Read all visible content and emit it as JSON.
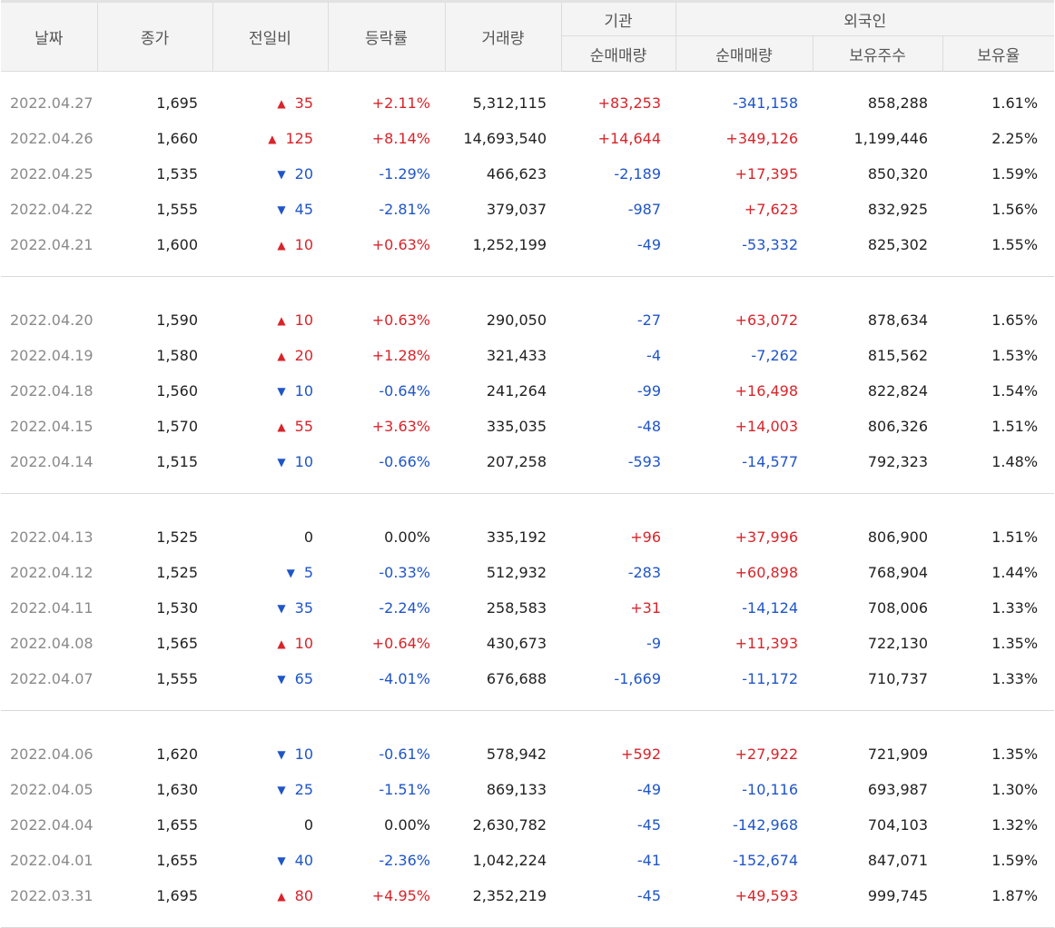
{
  "headers": {
    "date": "날짜",
    "close": "종가",
    "change": "전일비",
    "rate": "등락률",
    "volume": "거래량",
    "institution": "기관",
    "foreign": "외국인",
    "inst_net": "순매매량",
    "foreign_net": "순매매량",
    "foreign_hold": "보유주수",
    "foreign_ratio": "보유율"
  },
  "colors": {
    "up": "#d8242a",
    "down": "#1f55c8",
    "date": "#8a8a8a",
    "header_bg": "#f4f4f4"
  },
  "groups": [
    [
      {
        "date": "2022.04.27",
        "close": "1,695",
        "dir": "up",
        "change": "35",
        "rate": "+2.11%",
        "volume": "5,312,115",
        "inst": "+83,253",
        "fnet": "-341,158",
        "fhold": "858,288",
        "fratio": "1.61%"
      },
      {
        "date": "2022.04.26",
        "close": "1,660",
        "dir": "up",
        "change": "125",
        "rate": "+8.14%",
        "volume": "14,693,540",
        "inst": "+14,644",
        "fnet": "+349,126",
        "fhold": "1,199,446",
        "fratio": "2.25%"
      },
      {
        "date": "2022.04.25",
        "close": "1,535",
        "dir": "down",
        "change": "20",
        "rate": "-1.29%",
        "volume": "466,623",
        "inst": "-2,189",
        "fnet": "+17,395",
        "fhold": "850,320",
        "fratio": "1.59%"
      },
      {
        "date": "2022.04.22",
        "close": "1,555",
        "dir": "down",
        "change": "45",
        "rate": "-2.81%",
        "volume": "379,037",
        "inst": "-987",
        "fnet": "+7,623",
        "fhold": "832,925",
        "fratio": "1.56%"
      },
      {
        "date": "2022.04.21",
        "close": "1,600",
        "dir": "up",
        "change": "10",
        "rate": "+0.63%",
        "volume": "1,252,199",
        "inst": "-49",
        "fnet": "-53,332",
        "fhold": "825,302",
        "fratio": "1.55%"
      }
    ],
    [
      {
        "date": "2022.04.20",
        "close": "1,590",
        "dir": "up",
        "change": "10",
        "rate": "+0.63%",
        "volume": "290,050",
        "inst": "-27",
        "fnet": "+63,072",
        "fhold": "878,634",
        "fratio": "1.65%"
      },
      {
        "date": "2022.04.19",
        "close": "1,580",
        "dir": "up",
        "change": "20",
        "rate": "+1.28%",
        "volume": "321,433",
        "inst": "-4",
        "fnet": "-7,262",
        "fhold": "815,562",
        "fratio": "1.53%"
      },
      {
        "date": "2022.04.18",
        "close": "1,560",
        "dir": "down",
        "change": "10",
        "rate": "-0.64%",
        "volume": "241,264",
        "inst": "-99",
        "fnet": "+16,498",
        "fhold": "822,824",
        "fratio": "1.54%"
      },
      {
        "date": "2022.04.15",
        "close": "1,570",
        "dir": "up",
        "change": "55",
        "rate": "+3.63%",
        "volume": "335,035",
        "inst": "-48",
        "fnet": "+14,003",
        "fhold": "806,326",
        "fratio": "1.51%"
      },
      {
        "date": "2022.04.14",
        "close": "1,515",
        "dir": "down",
        "change": "10",
        "rate": "-0.66%",
        "volume": "207,258",
        "inst": "-593",
        "fnet": "-14,577",
        "fhold": "792,323",
        "fratio": "1.48%"
      }
    ],
    [
      {
        "date": "2022.04.13",
        "close": "1,525",
        "dir": "flat",
        "change": "0",
        "rate": "0.00%",
        "volume": "335,192",
        "inst": "+96",
        "fnet": "+37,996",
        "fhold": "806,900",
        "fratio": "1.51%"
      },
      {
        "date": "2022.04.12",
        "close": "1,525",
        "dir": "down",
        "change": "5",
        "rate": "-0.33%",
        "volume": "512,932",
        "inst": "-283",
        "fnet": "+60,898",
        "fhold": "768,904",
        "fratio": "1.44%"
      },
      {
        "date": "2022.04.11",
        "close": "1,530",
        "dir": "down",
        "change": "35",
        "rate": "-2.24%",
        "volume": "258,583",
        "inst": "+31",
        "fnet": "-14,124",
        "fhold": "708,006",
        "fratio": "1.33%"
      },
      {
        "date": "2022.04.08",
        "close": "1,565",
        "dir": "up",
        "change": "10",
        "rate": "+0.64%",
        "volume": "430,673",
        "inst": "-9",
        "fnet": "+11,393",
        "fhold": "722,130",
        "fratio": "1.35%"
      },
      {
        "date": "2022.04.07",
        "close": "1,555",
        "dir": "down",
        "change": "65",
        "rate": "-4.01%",
        "volume": "676,688",
        "inst": "-1,669",
        "fnet": "-11,172",
        "fhold": "710,737",
        "fratio": "1.33%"
      }
    ],
    [
      {
        "date": "2022.04.06",
        "close": "1,620",
        "dir": "down",
        "change": "10",
        "rate": "-0.61%",
        "volume": "578,942",
        "inst": "+592",
        "fnet": "+27,922",
        "fhold": "721,909",
        "fratio": "1.35%"
      },
      {
        "date": "2022.04.05",
        "close": "1,630",
        "dir": "down",
        "change": "25",
        "rate": "-1.51%",
        "volume": "869,133",
        "inst": "-49",
        "fnet": "-10,116",
        "fhold": "693,987",
        "fratio": "1.30%"
      },
      {
        "date": "2022.04.04",
        "close": "1,655",
        "dir": "flat",
        "change": "0",
        "rate": "0.00%",
        "volume": "2,630,782",
        "inst": "-45",
        "fnet": "-142,968",
        "fhold": "704,103",
        "fratio": "1.32%"
      },
      {
        "date": "2022.04.01",
        "close": "1,655",
        "dir": "down",
        "change": "40",
        "rate": "-2.36%",
        "volume": "1,042,224",
        "inst": "-41",
        "fnet": "-152,674",
        "fhold": "847,071",
        "fratio": "1.59%"
      },
      {
        "date": "2022.03.31",
        "close": "1,695",
        "dir": "up",
        "change": "80",
        "rate": "+4.95%",
        "volume": "2,352,219",
        "inst": "-45",
        "fnet": "+49,593",
        "fhold": "999,745",
        "fratio": "1.87%"
      }
    ]
  ]
}
